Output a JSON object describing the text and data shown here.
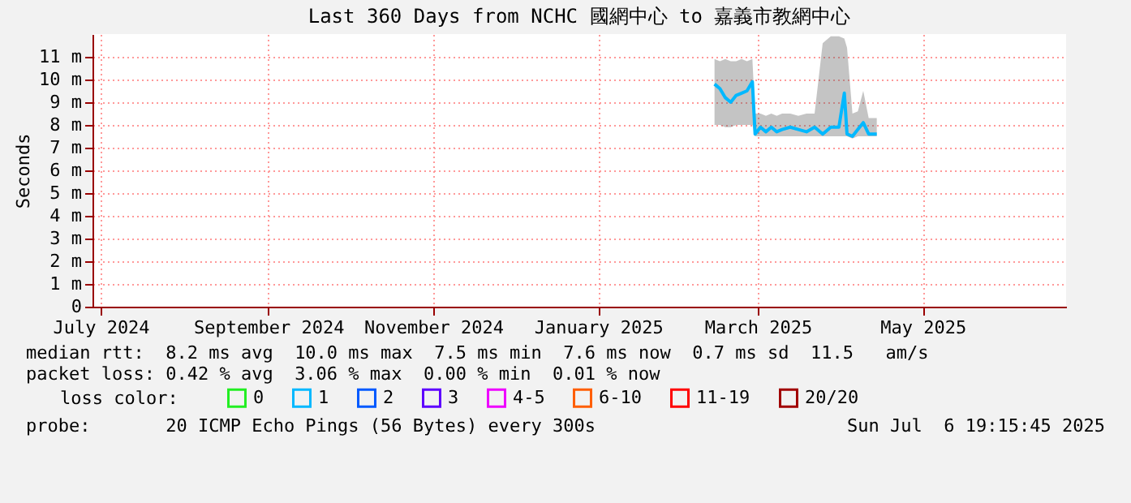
{
  "chart_data": {
    "type": "line",
    "title": "Last 360 Days from NCHC 國網中心 to 嘉義市教網中心",
    "ylabel": "Seconds",
    "legend_title": "loss color:",
    "legend": "bottom",
    "grid": true,
    "marker": "none",
    "line_style": "solid",
    "xlim": [
      "2024-06-28",
      "2025-06-23"
    ],
    "xticks": [
      {
        "value": "2024-07-01",
        "label": "July 2024"
      },
      {
        "value": "2024-09-01",
        "label": "September 2024"
      },
      {
        "value": "2024-11-01",
        "label": "November 2024"
      },
      {
        "value": "2025-01-01",
        "label": "January 2025"
      },
      {
        "value": "2025-03-01",
        "label": "March 2025"
      },
      {
        "value": "2025-05-01",
        "label": "May 2025"
      }
    ],
    "ylim": [
      0,
      12
    ],
    "yticks": [
      0,
      {
        "value": 1,
        "label": "1 m"
      },
      {
        "value": 2,
        "label": "2 m"
      },
      {
        "value": 3,
        "label": "3 m"
      },
      {
        "value": 4,
        "label": "4 m"
      },
      {
        "value": 5,
        "label": "5 m"
      },
      {
        "value": 6,
        "label": "6 m"
      },
      {
        "value": 7,
        "label": "7 m"
      },
      {
        "value": 8,
        "label": "8 m"
      },
      {
        "value": 9,
        "label": "9 m"
      },
      {
        "value": 10,
        "label": "10 m"
      },
      {
        "value": 11,
        "label": "11 m"
      }
    ],
    "x": [
      "2025-02-13",
      "2025-02-15",
      "2025-02-17",
      "2025-02-19",
      "2025-02-21",
      "2025-02-23",
      "2025-02-25",
      "2025-02-27",
      "2025-02-28",
      "2025-03-02",
      "2025-03-04",
      "2025-03-06",
      "2025-03-08",
      "2025-03-10",
      "2025-03-13",
      "2025-03-16",
      "2025-03-19",
      "2025-03-22",
      "2025-03-25",
      "2025-03-28",
      "2025-03-31",
      "2025-04-02",
      "2025-04-03",
      "2025-04-05",
      "2025-04-07",
      "2025-04-09",
      "2025-04-11",
      "2025-04-14"
    ],
    "series": [
      {
        "name": "0",
        "color": "#22ee22",
        "values": [
          null,
          null,
          null,
          null,
          null,
          null,
          null,
          null,
          null,
          null,
          null,
          null,
          null,
          null,
          null,
          null,
          null,
          null,
          null,
          null,
          null,
          null,
          null,
          null,
          null,
          null,
          null,
          null
        ]
      },
      {
        "name": "1",
        "color": "#00b8ff",
        "values": [
          9.8,
          9.6,
          9.2,
          9.0,
          9.3,
          9.4,
          9.5,
          9.9,
          7.6,
          7.9,
          7.7,
          7.9,
          7.7,
          7.8,
          7.9,
          7.8,
          7.7,
          7.9,
          7.6,
          7.9,
          7.9,
          9.4,
          7.6,
          7.5,
          7.8,
          8.1,
          7.6,
          7.6
        ],
        "lower": [
          8.0,
          8.0,
          7.9,
          7.9,
          8.0,
          8.0,
          8.0,
          8.0,
          7.5,
          7.5,
          7.5,
          7.5,
          7.5,
          7.5,
          7.5,
          7.5,
          7.5,
          7.5,
          7.5,
          7.5,
          7.5,
          7.5,
          7.5,
          7.4,
          7.5,
          7.5,
          7.5,
          7.5
        ],
        "upper": [
          10.9,
          10.8,
          10.9,
          10.8,
          10.8,
          10.9,
          10.8,
          10.9,
          8.5,
          8.5,
          8.4,
          8.5,
          8.4,
          8.5,
          8.5,
          8.4,
          8.5,
          8.5,
          11.6,
          11.9,
          11.9,
          11.8,
          11.4,
          8.5,
          8.6,
          9.5,
          8.3,
          8.3
        ]
      },
      {
        "name": "2",
        "color": "#0059ff",
        "values": [
          null,
          null,
          null,
          null,
          null,
          null,
          null,
          null,
          null,
          null,
          null,
          null,
          null,
          null,
          null,
          null,
          null,
          null,
          null,
          null,
          null,
          null,
          null,
          null,
          null,
          null,
          null,
          null
        ]
      },
      {
        "name": "3",
        "color": "#5e00ff",
        "values": [
          null,
          null,
          null,
          null,
          null,
          null,
          null,
          null,
          null,
          null,
          null,
          null,
          null,
          null,
          null,
          null,
          null,
          null,
          null,
          null,
          null,
          null,
          null,
          null,
          null,
          null,
          null,
          null
        ]
      },
      {
        "name": "4-5",
        "color": "#ee00ff",
        "values": [
          null,
          null,
          null,
          null,
          null,
          null,
          null,
          null,
          null,
          null,
          null,
          null,
          null,
          null,
          null,
          null,
          null,
          null,
          null,
          null,
          null,
          null,
          null,
          null,
          null,
          null,
          null,
          null
        ]
      },
      {
        "name": "6-10",
        "color": "#ff5e00",
        "values": [
          null,
          null,
          null,
          null,
          null,
          null,
          null,
          null,
          null,
          null,
          null,
          null,
          null,
          null,
          null,
          null,
          null,
          null,
          null,
          null,
          null,
          null,
          null,
          null,
          null,
          null,
          null,
          null
        ]
      },
      {
        "name": "11-19",
        "color": "#ff0000",
        "values": [
          null,
          null,
          null,
          null,
          null,
          null,
          null,
          null,
          null,
          null,
          null,
          null,
          null,
          null,
          null,
          null,
          null,
          null,
          null,
          null,
          null,
          null,
          null,
          null,
          null,
          null,
          null,
          null
        ]
      },
      {
        "name": "20/20",
        "color": "#a10000",
        "values": [
          null,
          null,
          null,
          null,
          null,
          null,
          null,
          null,
          null,
          null,
          null,
          null,
          null,
          null,
          null,
          null,
          null,
          null,
          null,
          null,
          null,
          null,
          null,
          null,
          null,
          null,
          null,
          null
        ]
      }
    ],
    "annotations": [
      "median rtt:  8.2 ms avg  10.0 ms max  7.5 ms min  7.6 ms now  0.7 ms sd  11.5   am/s",
      "packet loss: 0.42 % avg  3.06 % max  0.00 % min  0.01 % now",
      "probe:       20 ICMP Echo Pings (56 Bytes) every 300s",
      "Sun Jul  6 19:15:45 2025"
    ]
  }
}
